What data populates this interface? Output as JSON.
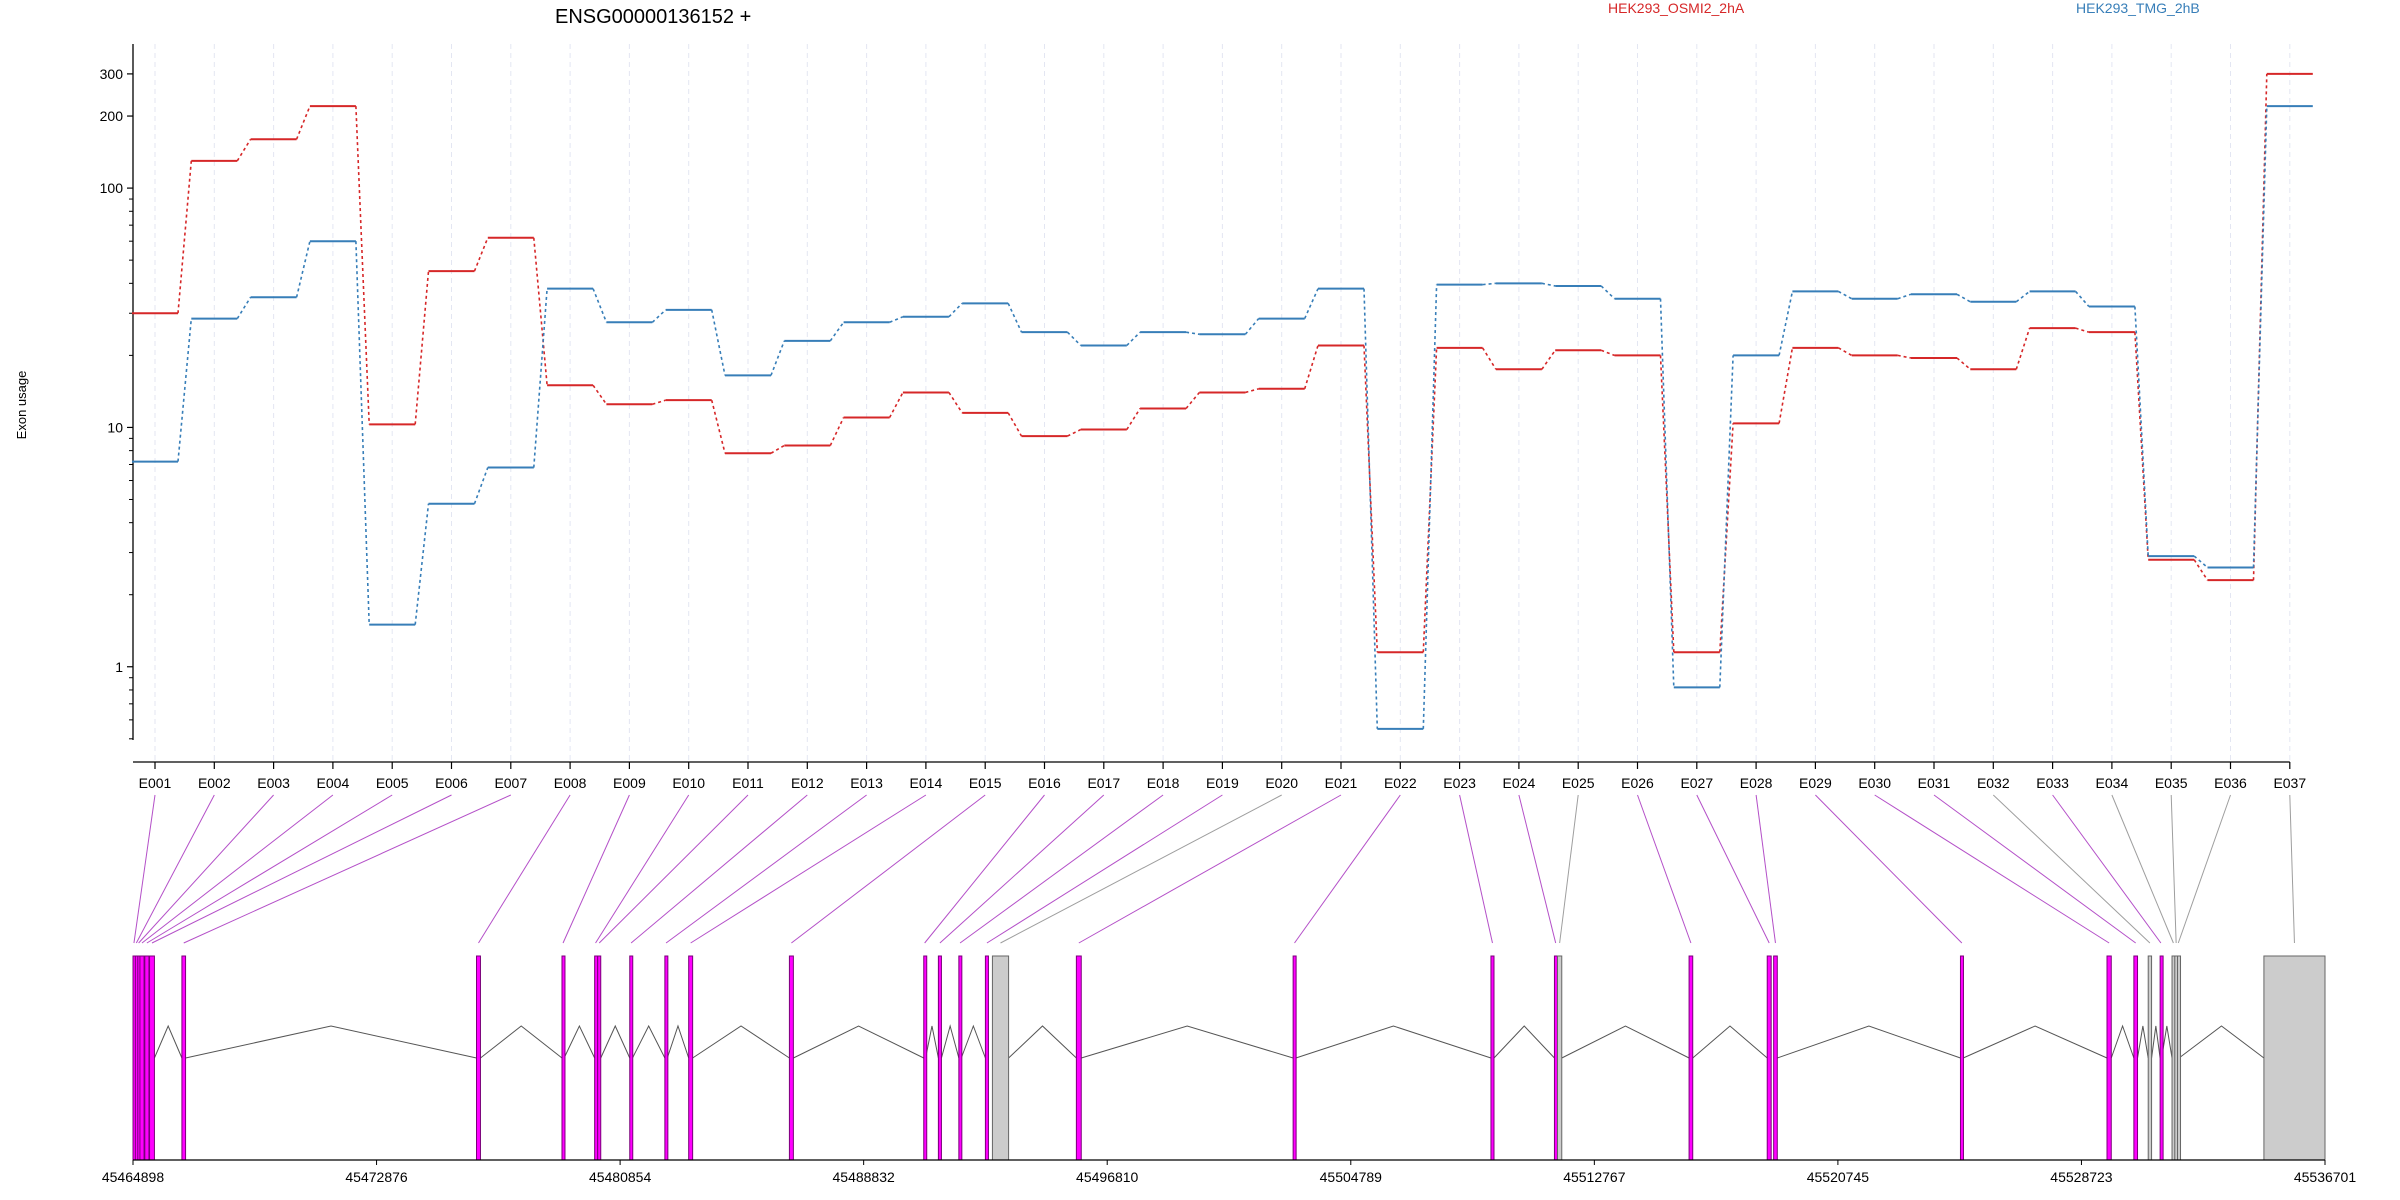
{
  "chart_data": {
    "type": "line",
    "title": "ENSG00000136152 +",
    "xlabel": "",
    "ylabel": "Exon usage",
    "yscale": "log",
    "ylim": [
      0.4,
      400
    ],
    "yticks": [
      1,
      10,
      100,
      200,
      300
    ],
    "grid": "vertical dashed lines per exon",
    "legend": "top, horizontal",
    "categories": [
      "E001",
      "E002",
      "E003",
      "E004",
      "E005",
      "E006",
      "E007",
      "E008",
      "E009",
      "E010",
      "E011",
      "E012",
      "E013",
      "E014",
      "E015",
      "E016",
      "E017",
      "E018",
      "E019",
      "E020",
      "E021",
      "E022",
      "E023",
      "E024",
      "E025",
      "E026",
      "E027",
      "E028",
      "E029",
      "E030",
      "E031",
      "E032",
      "E033",
      "E034",
      "E035",
      "E036",
      "E037"
    ],
    "series": [
      {
        "name": "HEK293_OSMI2_2hA",
        "color": "#d62728",
        "values": [
          30,
          130,
          160,
          220,
          10.3,
          45,
          62,
          15,
          12.5,
          13,
          7.8,
          8.4,
          11,
          14,
          11.5,
          9.2,
          9.8,
          12,
          14,
          14.5,
          22,
          1.15,
          21.5,
          17.5,
          21,
          20,
          1.15,
          10.4,
          21.5,
          20,
          19.5,
          17.5,
          26,
          25,
          2.8,
          2.3,
          300
        ]
      },
      {
        "name": "HEK293_TMG_2hB",
        "color": "#377eb8",
        "values": [
          7.2,
          28.5,
          35,
          60,
          1.5,
          4.8,
          6.8,
          38,
          27.5,
          31,
          16.5,
          23,
          27.5,
          29,
          33,
          25,
          22,
          25,
          24.5,
          28.5,
          38,
          0.55,
          39.5,
          40,
          39,
          34.5,
          0.82,
          20,
          37,
          34.5,
          36,
          33.5,
          37,
          32,
          2.9,
          2.6,
          220
        ]
      }
    ],
    "gene_model": {
      "coord_ticks": [
        45464898,
        45472876,
        45480854,
        45488832,
        45496810,
        45504789,
        45512767,
        45520745,
        45528723,
        45536701
      ],
      "exons": [
        {
          "id": "E001",
          "start": 45464898,
          "end": 45464960,
          "fill": "#ff00ff"
        },
        {
          "id": "E002",
          "start": 45464975,
          "end": 45465040,
          "fill": "#ff00ff"
        },
        {
          "id": "E003",
          "start": 45465055,
          "end": 45465110,
          "fill": "#ff00ff"
        },
        {
          "id": "E004",
          "start": 45465125,
          "end": 45465260,
          "fill": "#ff00ff"
        },
        {
          "id": "E005",
          "start": 45465285,
          "end": 45465420,
          "fill": "#ff00ff"
        },
        {
          "id": "E006",
          "start": 45465440,
          "end": 45465600,
          "fill": "#ff00ff"
        },
        {
          "id": "E007",
          "start": 45466500,
          "end": 45466620,
          "fill": "#ff00ff"
        },
        {
          "id": "E008",
          "start": 45476150,
          "end": 45476280,
          "fill": "#ff00ff"
        },
        {
          "id": "E009",
          "start": 45478950,
          "end": 45479020,
          "fill": "#ff00ff"
        },
        {
          "id": "E010",
          "start": 45480020,
          "end": 45480080,
          "fill": "#ff00ff"
        },
        {
          "id": "E011",
          "start": 45480120,
          "end": 45480220,
          "fill": "#ff00ff"
        },
        {
          "id": "E012",
          "start": 45481170,
          "end": 45481260,
          "fill": "#ff00ff"
        },
        {
          "id": "E013",
          "start": 45482320,
          "end": 45482400,
          "fill": "#ff00ff"
        },
        {
          "id": "E014",
          "start": 45483100,
          "end": 45483230,
          "fill": "#ff00ff"
        },
        {
          "id": "E015",
          "start": 45486400,
          "end": 45486530,
          "fill": "#ff00ff"
        },
        {
          "id": "E016",
          "start": 45490800,
          "end": 45490860,
          "fill": "#ff00ff"
        },
        {
          "id": "E017",
          "start": 45491280,
          "end": 45491380,
          "fill": "#ff00ff"
        },
        {
          "id": "E018",
          "start": 45491950,
          "end": 45492030,
          "fill": "#ff00ff"
        },
        {
          "id": "E019",
          "start": 45492820,
          "end": 45492920,
          "fill": "#ff00ff"
        },
        {
          "id": "E020",
          "start": 45493050,
          "end": 45493580,
          "fill": "#cccccc"
        },
        {
          "id": "E021",
          "start": 45495800,
          "end": 45495960,
          "fill": "#ff00ff"
        },
        {
          "id": "E022",
          "start": 45502900,
          "end": 45502990,
          "fill": "#ff00ff"
        },
        {
          "id": "E023",
          "start": 45509380,
          "end": 45509480,
          "fill": "#ff00ff"
        },
        {
          "id": "E024",
          "start": 45511460,
          "end": 45511540,
          "fill": "#ff00ff"
        },
        {
          "id": "E025",
          "start": 45511560,
          "end": 45511700,
          "fill": "#cccccc"
        },
        {
          "id": "E026",
          "start": 45515870,
          "end": 45515990,
          "fill": "#ff00ff"
        },
        {
          "id": "E027",
          "start": 45518430,
          "end": 45518560,
          "fill": "#ff00ff"
        },
        {
          "id": "E028",
          "start": 45518640,
          "end": 45518760,
          "fill": "#ff00ff"
        },
        {
          "id": "E029",
          "start": 45524760,
          "end": 45524850,
          "fill": "#ff00ff"
        },
        {
          "id": "E030",
          "start": 45529560,
          "end": 45529700,
          "fill": "#ff00ff"
        },
        {
          "id": "E031",
          "start": 45530440,
          "end": 45530560,
          "fill": "#ff00ff"
        },
        {
          "id": "E032",
          "start": 45530910,
          "end": 45531020,
          "fill": "#cccccc"
        },
        {
          "id": "E033",
          "start": 45531300,
          "end": 45531350,
          "fill": "#ff00ff"
        },
        {
          "id": "E034",
          "start": 45531690,
          "end": 45531780,
          "fill": "#cccccc"
        },
        {
          "id": "E035",
          "start": 45531780,
          "end": 45531870,
          "fill": "#cccccc"
        },
        {
          "id": "E036",
          "start": 45531870,
          "end": 45531920,
          "fill": "#cccccc"
        },
        {
          "id": "E037",
          "start": 45534700,
          "end": 45536701,
          "fill": "#cccccc"
        }
      ]
    }
  }
}
